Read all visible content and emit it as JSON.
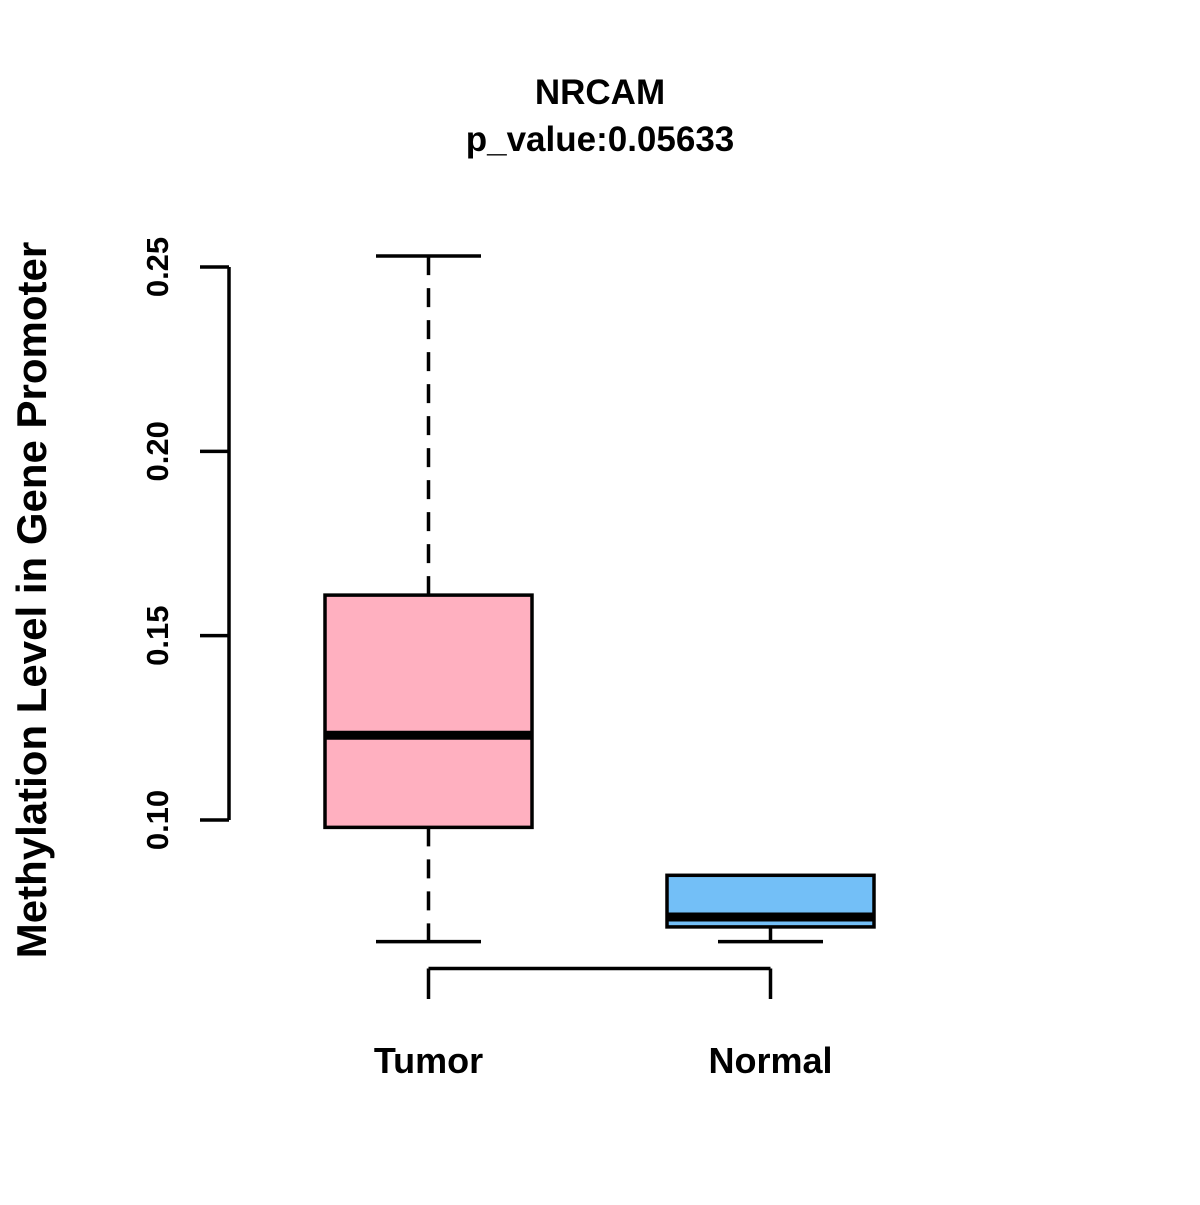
{
  "chart_data": {
    "type": "boxplot",
    "title": "NRCAM",
    "subtitle": "p_value:0.05633",
    "ylabel": "Methylation Level in Gene Promoter",
    "xlabel": "",
    "ytick_labels": [
      "0.10",
      "0.15",
      "0.20",
      "0.25"
    ],
    "ytick_values": [
      0.1,
      0.15,
      0.2,
      0.25
    ],
    "ylim": [
      0.067,
      0.253
    ],
    "grid": false,
    "legend": "none",
    "background_color": "#FFFFFF",
    "line_color": "#000000",
    "groups": [
      {
        "label": "Tumor",
        "fill_color": "#FFB0C0",
        "whisker_linetype": "dashed",
        "stats": {
          "whisker_low": 0.067,
          "q1": 0.098,
          "median": 0.123,
          "q3": 0.161,
          "whisker_high": 0.253
        }
      },
      {
        "label": "Normal",
        "fill_color": "#73BFF7",
        "whisker_linetype": "dashed",
        "stats": {
          "whisker_low": 0.067,
          "q1": 0.071,
          "median": 0.0737,
          "q3": 0.085,
          "whisker_high": 0.085
        }
      }
    ]
  }
}
